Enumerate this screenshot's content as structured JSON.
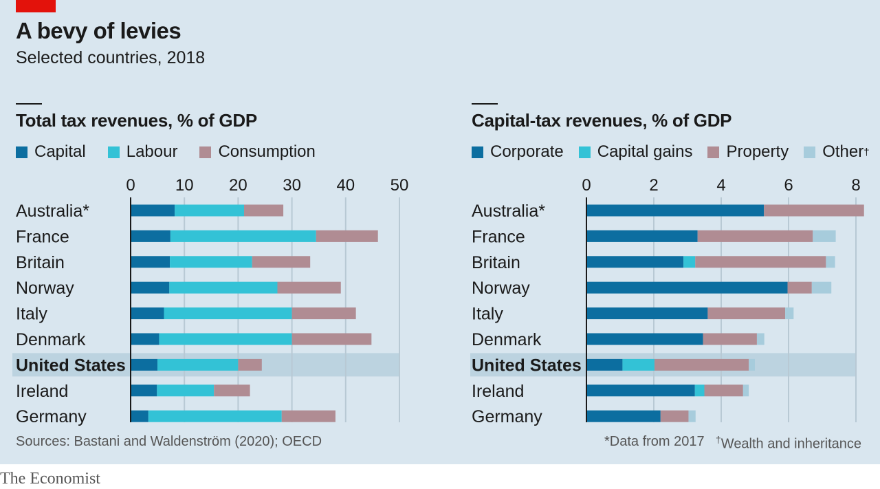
{
  "title": "A bevy of levies",
  "subtitle": "Selected countries, 2018",
  "colors": {
    "dark_blue": "#0c6ea0",
    "cyan": "#33c2d6",
    "mauve": "#b08c93",
    "light_blue": "#a7ccdc",
    "highlight": "#bcd3e0",
    "panel": "#d9e6ef",
    "red": "#e3120b"
  },
  "chart_data": [
    {
      "type": "bar",
      "orientation": "horizontal-stacked",
      "title": "Total tax revenues, % of GDP",
      "categories": [
        "Australia*",
        "France",
        "Britain",
        "Norway",
        "Italy",
        "Denmark",
        "United States",
        "Ireland",
        "Germany"
      ],
      "highlight": "United States",
      "xlim": [
        0,
        50
      ],
      "ticks": [
        "0",
        "10",
        "20",
        "30",
        "40",
        "50"
      ],
      "tick_values": [
        0,
        10,
        20,
        30,
        40,
        50
      ],
      "series": [
        {
          "name": "Capital",
          "color": "#0c6ea0",
          "values": [
            8.2,
            7.4,
            7.3,
            7.2,
            6.2,
            5.3,
            5.0,
            4.9,
            3.3
          ]
        },
        {
          "name": "Labour",
          "color": "#33c2d6",
          "values": [
            12.9,
            27.1,
            15.3,
            20.1,
            23.8,
            24.7,
            15.0,
            10.6,
            24.8
          ]
        },
        {
          "name": "Consumption",
          "color": "#b08c93",
          "values": [
            7.3,
            11.5,
            10.8,
            11.8,
            11.9,
            14.8,
            4.4,
            6.7,
            10.0
          ]
        }
      ]
    },
    {
      "type": "bar",
      "orientation": "horizontal-stacked",
      "title": "Capital-tax revenues, % of GDP",
      "categories": [
        "Australia*",
        "France",
        "Britain",
        "Norway",
        "Italy",
        "Denmark",
        "United States",
        "Ireland",
        "Germany"
      ],
      "highlight": "United States",
      "xlim": [
        0,
        8
      ],
      "ticks": [
        "0",
        "2",
        "4",
        "6",
        "8"
      ],
      "tick_values": [
        0,
        2,
        4,
        6,
        8
      ],
      "series": [
        {
          "name": "Corporate",
          "color": "#0c6ea0",
          "values": [
            5.27,
            3.3,
            2.88,
            5.97,
            3.6,
            3.46,
            1.07,
            3.22,
            2.2
          ]
        },
        {
          "name": "Capital gains",
          "color": "#33c2d6",
          "values": [
            0,
            0,
            0.35,
            0,
            0,
            0,
            0.95,
            0.28,
            0
          ]
        },
        {
          "name": "Property",
          "color": "#b08c93",
          "values": [
            2.97,
            3.42,
            3.88,
            0.72,
            2.3,
            1.6,
            2.8,
            1.15,
            0.83
          ]
        },
        {
          "name": "Other",
          "color": "#a7ccdc",
          "values": [
            0,
            0.68,
            0.27,
            0.58,
            0.25,
            0.22,
            0.18,
            0.17,
            0.21
          ]
        }
      ]
    }
  ],
  "legend_left": [
    "Capital",
    "Labour",
    "Consumption"
  ],
  "legend_right": [
    "Corporate",
    "Capital gains",
    "Property",
    "Other"
  ],
  "legend_right_mark": "†",
  "source": "Sources: Bastani and Waldenström (2020); OECD",
  "footnote_1": "*Data from 2017",
  "footnote_2_mark": "†",
  "footnote_2": "Wealth and inheritance",
  "brand": "The Economist"
}
